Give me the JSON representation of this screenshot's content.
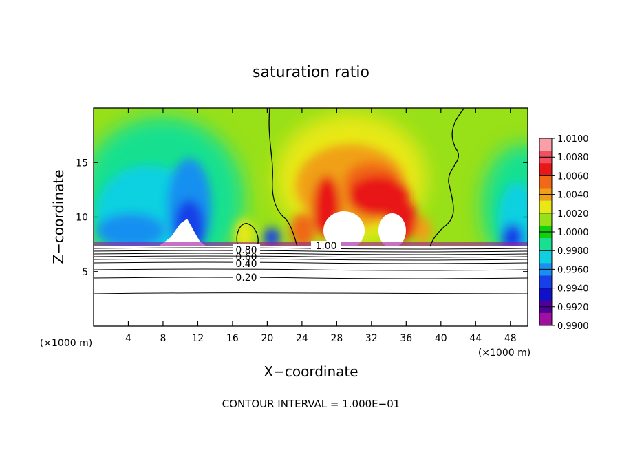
{
  "chart_data": {
    "type": "heatmap",
    "title": "saturation ratio",
    "xlabel": "X−coordinate",
    "ylabel": "Z−coordinate",
    "x_unit_left": "(×1000 m)",
    "x_unit_right": "(×1000 m)",
    "xlim": [
      0,
      50
    ],
    "ylim": [
      0,
      20
    ],
    "x_ticks": [
      4,
      8,
      12,
      16,
      20,
      24,
      28,
      32,
      36,
      40,
      44,
      48
    ],
    "y_ticks": [
      5,
      10,
      15
    ],
    "colorbar": {
      "levels": [
        "1.0100",
        "1.0080",
        "1.0060",
        "1.0040",
        "1.0020",
        "1.0000",
        "0.9980",
        "0.9960",
        "0.9940",
        "0.9920",
        "0.9900"
      ],
      "colors": [
        "#f7a0a8",
        "#f05060",
        "#e81818",
        "#f06818",
        "#f0a018",
        "#e8e818",
        "#98e018",
        "#10d010",
        "#18e090",
        "#10d0e0",
        "#1890f0",
        "#1840e8",
        "#1010c8",
        "#500098",
        "#a010a0"
      ]
    },
    "contour_labels": [
      "1.00",
      "0.80",
      "0.60",
      "0.40",
      "0.20"
    ],
    "contour_levels": [
      0.2,
      0.3,
      0.4,
      0.5,
      0.6,
      0.7,
      0.8,
      0.9,
      1.0
    ],
    "footer": "CONTOUR INTERVAL = 1.000E−01"
  }
}
